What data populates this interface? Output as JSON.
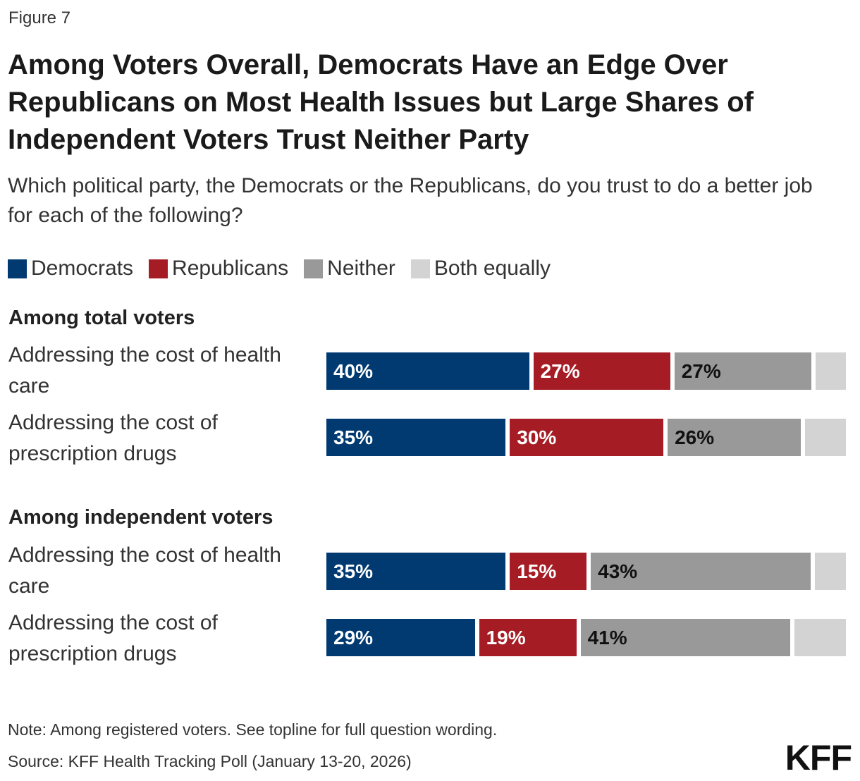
{
  "figure_label": "Figure 7",
  "title": "Among Voters Overall, Democrats Have an Edge Over Republicans on Most Health Issues but Large Shares of Independent Voters Trust Neither Party",
  "subtitle": "Which political party, the Democrats or the Republicans, do you trust to do a better job for each of the following?",
  "note": "Note: Among registered voters. See topline for full question wording.",
  "source": "Source: KFF Health Tracking Poll (January 13-20, 2026)",
  "logo": "KFF",
  "legend": [
    {
      "label": "Democrats",
      "color": "#003a70"
    },
    {
      "label": "Republicans",
      "color": "#a51c24"
    },
    {
      "label": "Neither",
      "color": "#999999"
    },
    {
      "label": "Both equally",
      "color": "#d3d3d3"
    }
  ],
  "chart_data": {
    "type": "bar",
    "orientation": "horizontal",
    "stacked": true,
    "unit": "%",
    "series_names": [
      "Democrats",
      "Republicans",
      "Neither",
      "Both equally"
    ],
    "groups": [
      {
        "title": "Among total voters",
        "rows": [
          {
            "label": "Addressing the cost of health care",
            "values": [
              40,
              27,
              27,
              6
            ],
            "labels": [
              "40%",
              "27%",
              "27%",
              ""
            ]
          },
          {
            "label": "Addressing the cost of prescription drugs",
            "values": [
              35,
              30,
              26,
              8
            ],
            "labels": [
              "35%",
              "30%",
              "26%",
              ""
            ]
          }
        ]
      },
      {
        "title": "Among independent voters",
        "rows": [
          {
            "label": "Addressing the cost of health care",
            "values": [
              35,
              15,
              43,
              6
            ],
            "labels": [
              "35%",
              "15%",
              "43%",
              ""
            ]
          },
          {
            "label": "Addressing the cost of prescription drugs",
            "values": [
              29,
              19,
              41,
              10
            ],
            "labels": [
              "29%",
              "19%",
              "41%",
              ""
            ]
          }
        ]
      }
    ],
    "label_colors": [
      "#ffffff",
      "#ffffff",
      "#111111",
      "#111111"
    ]
  }
}
